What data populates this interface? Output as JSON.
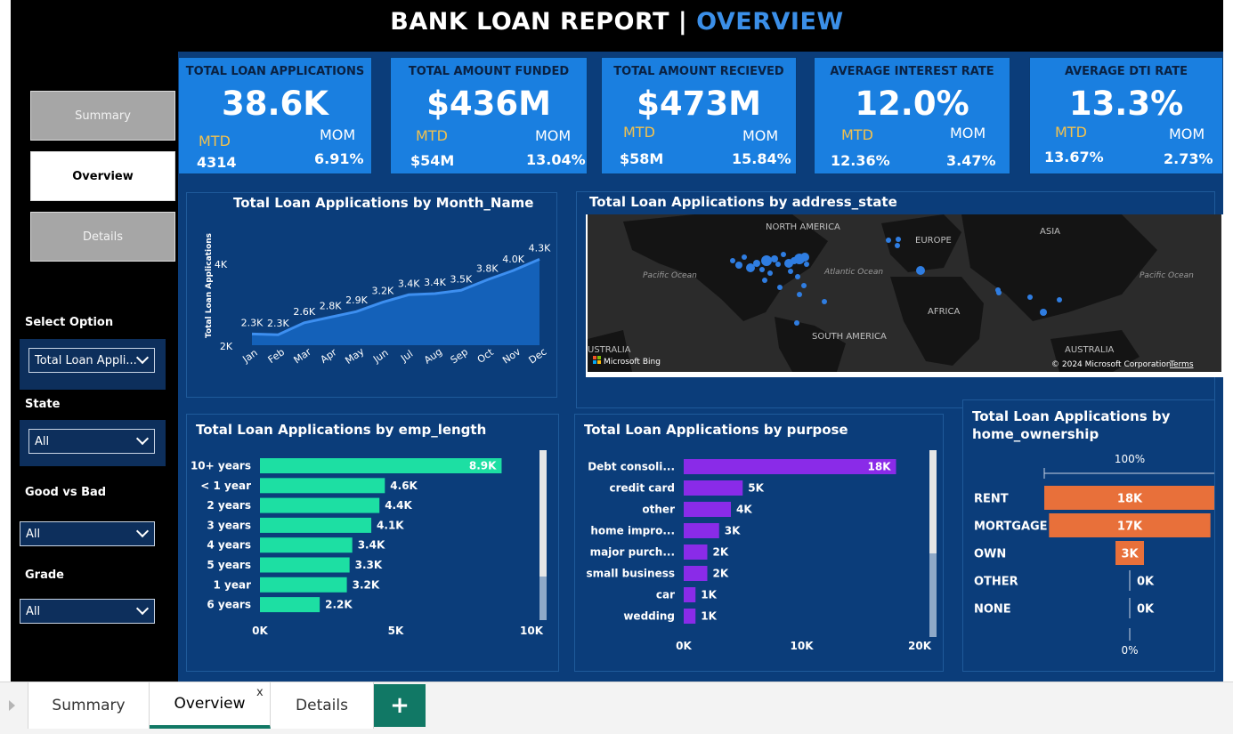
{
  "header": {
    "title_main": "BANK LOAN REPORT | ",
    "title_accent": "OVERVIEW"
  },
  "sidebar": {
    "nav": [
      "Summary",
      "Overview",
      "Details"
    ],
    "select_option": {
      "label": "Select Option",
      "value": "Total Loan Appli..."
    },
    "state": {
      "label": "State",
      "value": "All"
    },
    "good_bad": {
      "label": "Good vs Bad",
      "value": "All"
    },
    "grade": {
      "label": "Grade",
      "value": "All"
    }
  },
  "kpis": [
    {
      "title": "TOTAL LOAN APPLICATIONS",
      "value": "38.6K",
      "mtd_label": "MTD",
      "mom_label": "MOM",
      "mtd": "4314",
      "mom": "6.91%"
    },
    {
      "title": "TOTAL AMOUNT FUNDED",
      "value": "$436M",
      "mtd_label": "MTD",
      "mom_label": "MOM",
      "mtd": "$54M",
      "mom": "13.04%"
    },
    {
      "title": "TOTAL AMOUNT RECIEVED",
      "value": "$473M",
      "mtd_label": "MTD",
      "mom_label": "MOM",
      "mtd": "$58M",
      "mom": "15.84%"
    },
    {
      "title": "AVERAGE INTEREST RATE",
      "value": "12.0%",
      "mtd_label": "MTD",
      "mom_label": "MOM",
      "mtd": "12.36%",
      "mom": "3.47%"
    },
    {
      "title": "AVERAGE DTI RATE",
      "value": "13.3%",
      "mtd_label": "MTD",
      "mom_label": "MOM",
      "mtd": "13.67%",
      "mom": "2.73%"
    }
  ],
  "map": {
    "title": "Total Loan Applications by address_state",
    "labels": [
      "NORTH AMERICA",
      "EUROPE",
      "ASIA",
      "Pacific Ocean",
      "Atlantic Ocean",
      "Pacific Ocean",
      "AFRICA",
      "SOUTH AMERICA",
      "USTRALIA",
      "AUSTRALIA"
    ],
    "bing": "Microsoft Bing",
    "copyright": "© 2024 Microsoft Corporation",
    "terms": "Terms"
  },
  "chart_data": [
    {
      "type": "area",
      "title": "Total Loan Applications by Month_Name",
      "ylabel": "Total Loan Applications",
      "xlabel": "",
      "categories": [
        "Jan",
        "Feb",
        "Mar",
        "Apr",
        "May",
        "Jun",
        "Jul",
        "Aug",
        "Sep",
        "Oct",
        "Nov",
        "Dec"
      ],
      "values": [
        2300,
        2280,
        2600,
        2750,
        2900,
        3150,
        3350,
        3380,
        3470,
        3750,
        4000,
        4300
      ],
      "data_labels": [
        "2.3K",
        "2.3K",
        "2.6K",
        "2.8K",
        "2.9K",
        "3.2K",
        "3.4K",
        "3.4K",
        "3.5K",
        "3.8K",
        "4.0K",
        "4.3K"
      ],
      "yticks": [
        "4K",
        "2K"
      ],
      "ylim": [
        2000,
        4500
      ],
      "color": "#3d8ff0"
    },
    {
      "type": "bar",
      "orientation": "horizontal",
      "title": "Total Loan Applications by emp_length",
      "categories": [
        "10+ years",
        "< 1 year",
        "2 years",
        "3 years",
        "4 years",
        "5 years",
        "1 year",
        "6 years"
      ],
      "values": [
        8900,
        4600,
        4400,
        4100,
        3400,
        3300,
        3200,
        2200
      ],
      "data_labels": [
        "8.9K",
        "4.6K",
        "4.4K",
        "4.1K",
        "3.4K",
        "3.3K",
        "3.2K",
        "2.2K"
      ],
      "xticks": [
        "0K",
        "5K",
        "10K"
      ],
      "xlim": [
        0,
        10000
      ],
      "color": "#1ddfa3"
    },
    {
      "type": "bar",
      "orientation": "horizontal",
      "title": "Total Loan Applications by purpose",
      "categories": [
        "Debt consoli...",
        "credit card",
        "other",
        "home impro...",
        "major purch...",
        "small business",
        "car",
        "wedding"
      ],
      "values": [
        18000,
        5000,
        4000,
        3000,
        2000,
        2000,
        1000,
        1000
      ],
      "data_labels": [
        "18K",
        "5K",
        "4K",
        "3K",
        "2K",
        "2K",
        "1K",
        "1K"
      ],
      "xticks": [
        "0K",
        "10K",
        "20K"
      ],
      "xlim": [
        0,
        20000
      ],
      "color": "#8a2be8"
    },
    {
      "type": "bar",
      "orientation": "horizontal",
      "title": "Total Loan Applications by home_ownership",
      "categories": [
        "RENT",
        "MORTGAGE",
        "OWN",
        "OTHER",
        "NONE"
      ],
      "values": [
        18000,
        17000,
        3000,
        0,
        0
      ],
      "data_labels": [
        "18K",
        "17K",
        "3K",
        "0K",
        "0K"
      ],
      "top_label": "100%",
      "bottom_label": "0%",
      "color": "#e8703a"
    }
  ],
  "tabs": {
    "items": [
      "Summary",
      "Overview",
      "Details"
    ],
    "close": "x",
    "add": "+"
  }
}
